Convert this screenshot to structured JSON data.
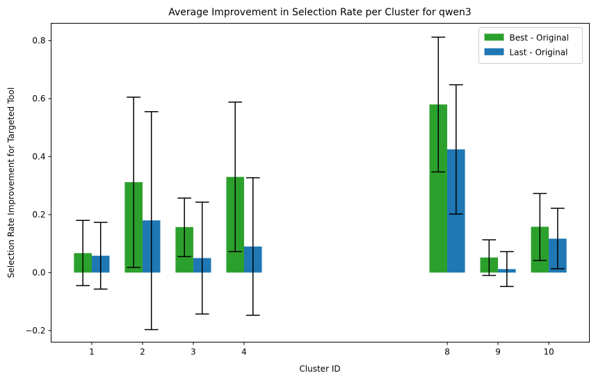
{
  "chart_data": {
    "type": "bar",
    "title": "Average Improvement in Selection Rate per Cluster for qwen3",
    "xlabel": "Cluster ID",
    "ylabel": "Selection Rate Improvement for Targeted Tool",
    "x": [
      1,
      2,
      3,
      4,
      8,
      9,
      10
    ],
    "x_ticks": [
      "1",
      "2",
      "3",
      "4",
      "8",
      "9",
      "10"
    ],
    "xlim": [
      0.2,
      10.8
    ],
    "ylim": [
      -0.24,
      0.86
    ],
    "y_ticks": [
      -0.2,
      0.0,
      0.2,
      0.4,
      0.6,
      0.8
    ],
    "y_tick_labels": [
      "−0.2",
      "0.0",
      "0.2",
      "0.4",
      "0.6",
      "0.8"
    ],
    "grid": false,
    "legend_position": "top-right",
    "series": [
      {
        "name": "Best - Original",
        "color": "#2ca02c",
        "values": [
          0.067,
          0.312,
          0.157,
          0.33,
          0.58,
          0.052,
          0.158
        ],
        "err_low": [
          -0.045,
          0.018,
          0.055,
          0.072,
          0.347,
          -0.01,
          0.042
        ],
        "err_high": [
          0.18,
          0.605,
          0.257,
          0.588,
          0.812,
          0.113,
          0.273
        ]
      },
      {
        "name": "Last - Original",
        "color": "#1f77b4",
        "values": [
          0.058,
          0.18,
          0.05,
          0.09,
          0.425,
          0.012,
          0.117
        ],
        "err_low": [
          -0.057,
          -0.197,
          -0.143,
          -0.147,
          0.202,
          -0.048,
          0.013
        ],
        "err_high": [
          0.173,
          0.555,
          0.243,
          0.327,
          0.648,
          0.072,
          0.222
        ]
      }
    ]
  }
}
